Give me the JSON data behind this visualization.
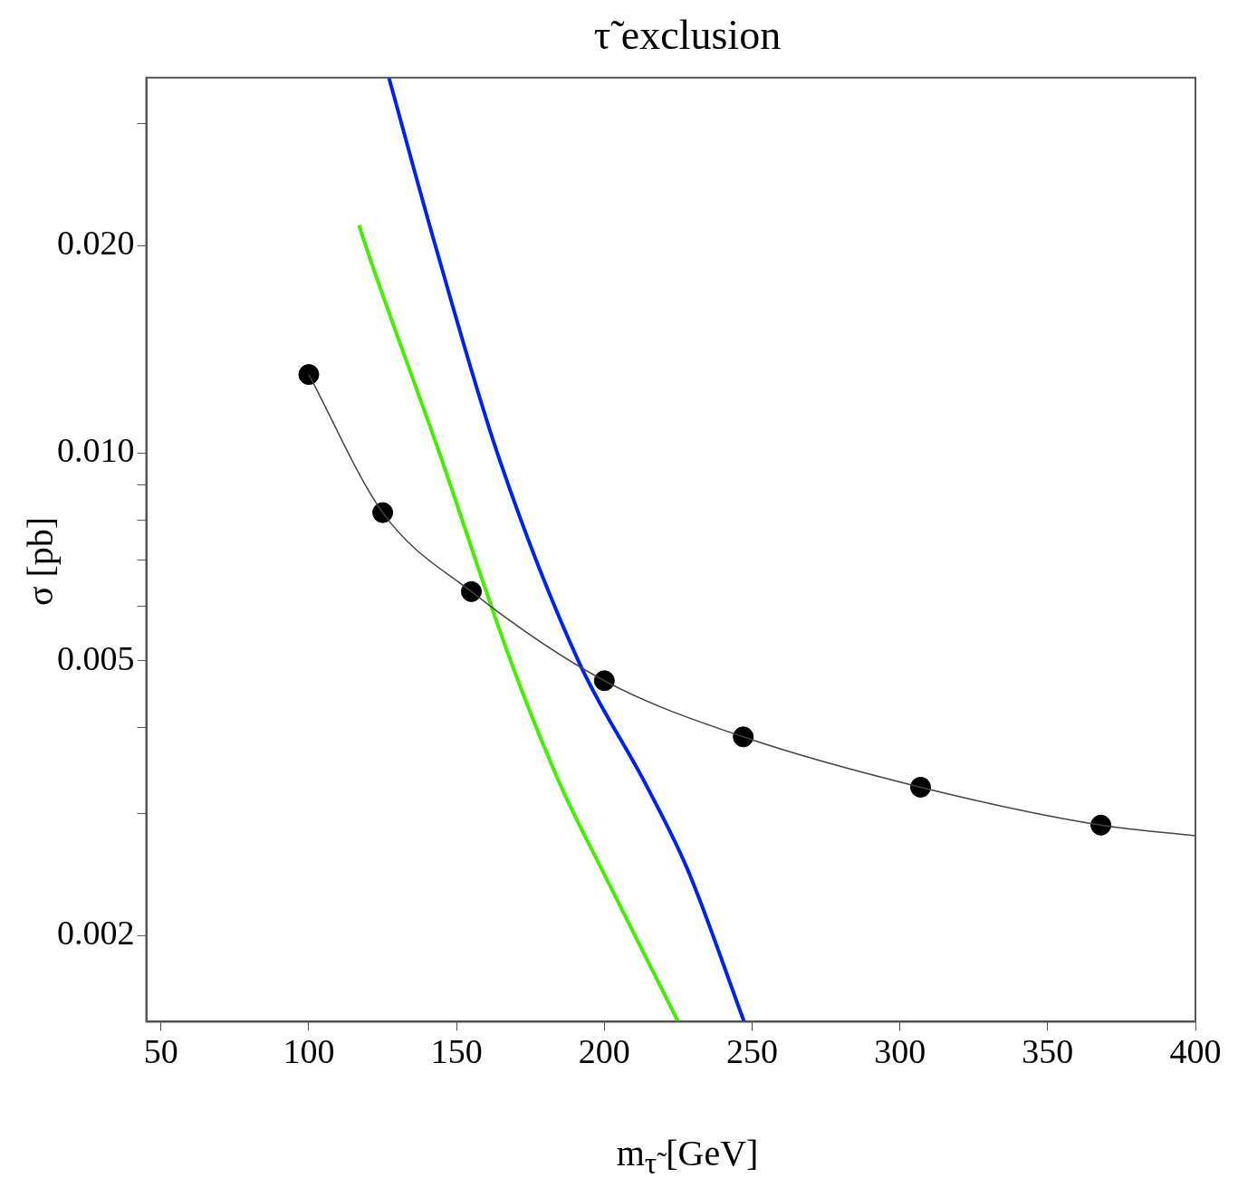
{
  "chart_data": {
    "type": "line",
    "title": "τ̃ exclusion",
    "xlabel": "m$_{τ̃}$ [GeV]",
    "ylabel": "σ [pb]",
    "log": "y",
    "xlim": [
      45,
      400
    ],
    "xticks": [
      50,
      100,
      150,
      200,
      250,
      300,
      350,
      400
    ],
    "ylim": [
      0.0015,
      0.035
    ],
    "yticks": [
      {
        "value": 0.002,
        "label": "0.002"
      },
      {
        "value": 0.003,
        "label": null
      },
      {
        "value": 0.004,
        "label": null
      },
      {
        "value": 0.005,
        "label": "0.005"
      },
      {
        "value": 0.006,
        "label": null
      },
      {
        "value": 0.007,
        "label": null
      },
      {
        "value": 0.008,
        "label": null
      },
      {
        "value": 0.009,
        "label": null
      },
      {
        "value": 0.01,
        "label": "0.010"
      },
      {
        "value": 0.02,
        "label": "0.020"
      },
      {
        "value": 0.03,
        "label": null
      }
    ],
    "series": [
      {
        "type": "line",
        "color": "#444444",
        "marker": "none",
        "x": [
          100,
          125,
          155,
          200,
          247,
          307,
          368,
          400
        ],
        "values": [
          0.013,
          0.0082,
          0.0063,
          0.00468,
          0.00388,
          0.00328,
          0.00289,
          0.00279
        ]
      },
      {
        "type": "scatter",
        "color": "#000000",
        "marker": "circle",
        "x": [
          100,
          125,
          155,
          200,
          247,
          307,
          368
        ],
        "values": [
          0.013,
          0.0082,
          0.0063,
          0.00468,
          0.00388,
          0.00328,
          0.00289
        ]
      },
      {
        "type": "line",
        "color": "#44ee00",
        "marker": "none",
        "x": [
          117,
          119.2,
          144.2,
          168.3,
          185.2,
          199.2,
          225
        ],
        "values": [
          0.0214,
          0.02,
          0.01,
          0.005,
          0.0033,
          0.00249,
          0.0015
        ]
      },
      {
        "type": "line",
        "color": "#0022ee",
        "marker": "none",
        "x": [
          127.1,
          142.8,
          163.8,
          191.2,
          214.2,
          228.2,
          247.3
        ],
        "values": [
          0.035,
          0.02,
          0.01,
          0.005,
          0.0033,
          0.00249,
          0.0015
        ]
      }
    ]
  }
}
